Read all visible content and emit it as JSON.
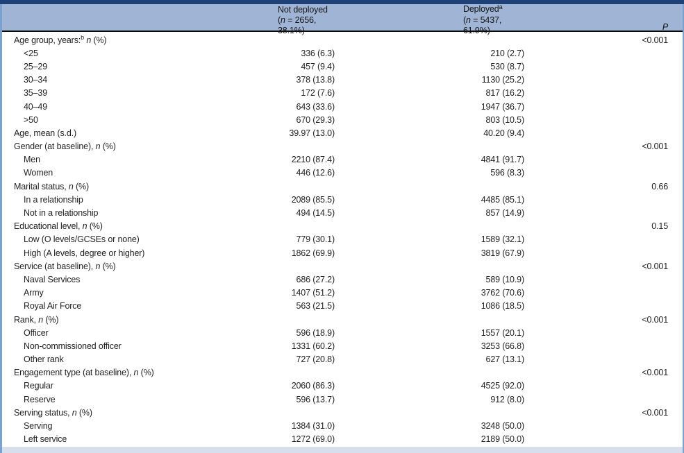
{
  "header": {
    "nd": {
      "title": "Not deployed",
      "open": "(",
      "n": "n",
      "rest": " = 2656, 38.1%)"
    },
    "dep": {
      "title": "Deployed",
      "sup": "a",
      "open": "(",
      "n": "n",
      "rest": " = 5437, 61.9%)"
    },
    "p": "P"
  },
  "table": {
    "rows": [
      {
        "pre": "Age group, years:",
        "sup": "b",
        "mid": " ",
        "n": "n",
        "post": " (%)",
        "indent": false,
        "nd": "",
        "d": "",
        "p": "<0.001"
      },
      {
        "pre": "<25",
        "indent": true,
        "nd": "336 (6.3)",
        "d": "210 (2.7)",
        "p": ""
      },
      {
        "pre": "25–29",
        "indent": true,
        "nd": "457 (9.4)",
        "d": "530 (8.7)",
        "p": ""
      },
      {
        "pre": "30–34",
        "indent": true,
        "nd": "378 (13.8)",
        "d": "1130 (25.2)",
        "p": ""
      },
      {
        "pre": "35–39",
        "indent": true,
        "nd": "172 (7.6)",
        "d": "817 (16.2)",
        "p": ""
      },
      {
        "pre": "40–49",
        "indent": true,
        "nd": "643 (33.6)",
        "d": "1947 (36.7)",
        "p": ""
      },
      {
        "pre": ">50",
        "indent": true,
        "nd": "670 (29.3)",
        "d": "803 (10.5)",
        "p": ""
      },
      {
        "pre": "Age, mean (s.d.)",
        "indent": false,
        "nd": "39.97 (13.0)",
        "d": "40.20 (9.4)",
        "p": ""
      },
      {
        "pre": "Gender (at baseline), ",
        "n": "n",
        "post": " (%)",
        "indent": false,
        "nd": "",
        "d": "",
        "p": "<0.001"
      },
      {
        "pre": "Men",
        "indent": true,
        "nd": "2210 (87.4)",
        "d": "4841 (91.7)",
        "p": ""
      },
      {
        "pre": "Women",
        "indent": true,
        "nd": "446 (12.6)",
        "d": "596 (8.3)",
        "p": ""
      },
      {
        "pre": "Marital status, ",
        "n": "n",
        "post": " (%)",
        "indent": false,
        "nd": "",
        "d": "",
        "p": "0.66"
      },
      {
        "pre": "In a relationship",
        "indent": true,
        "nd": "2089 (85.5)",
        "d": "4485 (85.1)",
        "p": ""
      },
      {
        "pre": "Not in a relationship",
        "indent": true,
        "nd": "494 (14.5)",
        "d": "857 (14.9)",
        "p": ""
      },
      {
        "pre": "Educational level, ",
        "n": "n",
        "post": " (%)",
        "indent": false,
        "nd": "",
        "d": "",
        "p": "0.15"
      },
      {
        "pre": "Low (O levels/GCSEs or none)",
        "indent": true,
        "nd": "779 (30.1)",
        "d": "1589 (32.1)",
        "p": ""
      },
      {
        "pre": "High (A levels, degree or higher)",
        "indent": true,
        "nd": "1862 (69.9)",
        "d": "3819 (67.9)",
        "p": ""
      },
      {
        "pre": "Service (at baseline), ",
        "n": "n",
        "post": " (%)",
        "indent": false,
        "nd": "",
        "d": "",
        "p": "<0.001"
      },
      {
        "pre": "Naval Services",
        "indent": true,
        "nd": "686 (27.2)",
        "d": "589 (10.9)",
        "p": ""
      },
      {
        "pre": "Army",
        "indent": true,
        "nd": "1407 (51.2)",
        "d": "3762 (70.6)",
        "p": ""
      },
      {
        "pre": "Royal Air Force",
        "indent": true,
        "nd": "563 (21.5)",
        "d": "1086 (18.5)",
        "p": ""
      },
      {
        "pre": "Rank, ",
        "n": "n",
        "post": " (%)",
        "indent": false,
        "nd": "",
        "d": "",
        "p": "<0.001"
      },
      {
        "pre": "Officer",
        "indent": true,
        "nd": "596 (18.9)",
        "d": "1557 (20.1)",
        "p": ""
      },
      {
        "pre": "Non-commissioned officer",
        "indent": true,
        "nd": "1331 (60.2)",
        "d": "3253 (66.8)",
        "p": ""
      },
      {
        "pre": "Other rank",
        "indent": true,
        "nd": "727 (20.8)",
        "d": "627 (13.1)",
        "p": ""
      },
      {
        "pre": "Engagement type (at baseline), ",
        "n": "n",
        "post": " (%)",
        "indent": false,
        "nd": "",
        "d": "",
        "p": "<0.001"
      },
      {
        "pre": "Regular",
        "indent": true,
        "nd": "2060 (86.3)",
        "d": "4525 (92.0)",
        "p": ""
      },
      {
        "pre": "Reserve",
        "indent": true,
        "nd": "596 (13.7)",
        "d": "912 (8.0)",
        "p": ""
      },
      {
        "pre": "Serving status, ",
        "n": "n",
        "post": " (%)",
        "indent": false,
        "nd": "",
        "d": "",
        "p": "<0.001"
      },
      {
        "pre": "Serving",
        "indent": true,
        "nd": "1384 (31.0)",
        "d": "3248 (50.0)",
        "p": ""
      },
      {
        "pre": "Left service",
        "indent": true,
        "nd": "1272 (69.0)",
        "d": "2189 (50.0)",
        "p": ""
      }
    ]
  },
  "colors": {
    "top_bar": "#1d4076",
    "header_band": "#a0b4d6",
    "edge_line": "#7aa2cf",
    "bottom_strip": "#d8dfec"
  }
}
